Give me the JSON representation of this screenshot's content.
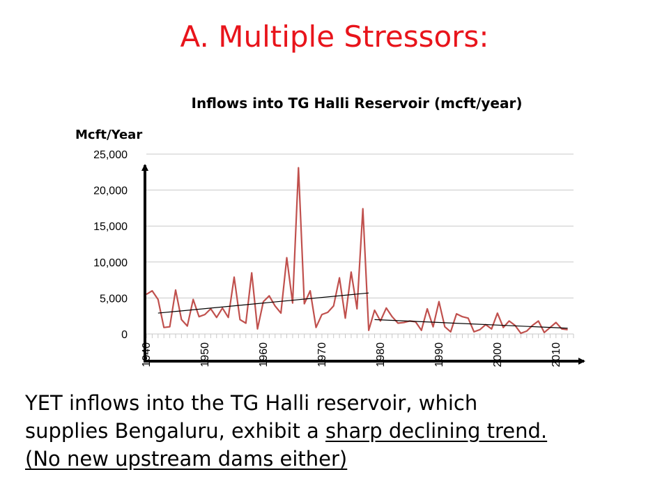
{
  "slide": {
    "title": "A. Multiple Stressors:"
  },
  "body": {
    "line1": "YET inflows into the TG Halli reservoir, which",
    "line2_plain": "supplies Bengaluru, exhibit a ",
    "line2_underlined": "sharp declining trend.",
    "line3": "(No new upstream dams either)"
  },
  "colors": {
    "title": "#e8141b",
    "series": "#c0504d",
    "grid": "#c8c8c8",
    "arrows": "#000000"
  },
  "chart_data": {
    "type": "line",
    "title": "Inflows into TG Halli Reservoir (mcft/year)",
    "ylabel": "Mcft/Year",
    "xlabel": "",
    "ylim": [
      0,
      25000
    ],
    "xlim": [
      1940,
      2013
    ],
    "yticks": [
      0,
      5000,
      10000,
      15000,
      20000,
      25000
    ],
    "ytick_labels": [
      "0",
      "5,000",
      "10,000",
      "15,000",
      "20,000",
      "25,000"
    ],
    "xticks": [
      1940,
      1950,
      1960,
      1970,
      1980,
      1990,
      2000,
      2010
    ],
    "xtick_labels": [
      "1940",
      "1950",
      "1960",
      "1970",
      "1980",
      "1990",
      "2000",
      "2010"
    ],
    "grid": true,
    "series": [
      {
        "x": [
          1940,
          1941,
          1942,
          1943,
          1944,
          1945,
          1946,
          1947,
          1948,
          1949,
          1950,
          1951,
          1952,
          1953,
          1954,
          1955,
          1956,
          1957,
          1958,
          1959,
          1960,
          1961,
          1962,
          1963,
          1964,
          1965,
          1966,
          1967,
          1968,
          1969,
          1970,
          1971,
          1972,
          1973,
          1974,
          1975,
          1976,
          1977,
          1978,
          1979,
          1980,
          1981,
          1982,
          1983,
          1984,
          1985,
          1986,
          1987,
          1988,
          1989,
          1990,
          1991,
          1992,
          1993,
          1994,
          1995,
          1996,
          1997,
          1998,
          1999,
          2000,
          2001,
          2002,
          2003,
          2004,
          2005,
          2006,
          2007,
          2008,
          2009,
          2010,
          2011,
          2012
        ],
        "values": [
          5500,
          6000,
          4800,
          900,
          1000,
          6100,
          2000,
          1100,
          4800,
          2400,
          2700,
          3500,
          2300,
          3600,
          2300,
          7900,
          2000,
          1500,
          8500,
          700,
          4500,
          5300,
          3900,
          2900,
          10600,
          4300,
          23100,
          4200,
          6000,
          900,
          2700,
          3000,
          3900,
          7800,
          2200,
          8600,
          3500,
          17400,
          500,
          3300,
          1800,
          3600,
          2400,
          1500,
          1600,
          1800,
          1700,
          500,
          3500,
          1000,
          4500,
          1000,
          300,
          2800,
          2400,
          2200,
          300,
          600,
          1300,
          700,
          2900,
          900,
          1800,
          1200,
          100,
          400,
          1200,
          1800,
          200,
          900,
          1600,
          700,
          600
        ]
      }
    ],
    "trendlines": [
      {
        "x": [
          1942,
          1978
        ],
        "values": [
          2900,
          5700
        ]
      },
      {
        "x": [
          1979,
          2012
        ],
        "values": [
          2000,
          800
        ]
      }
    ]
  }
}
